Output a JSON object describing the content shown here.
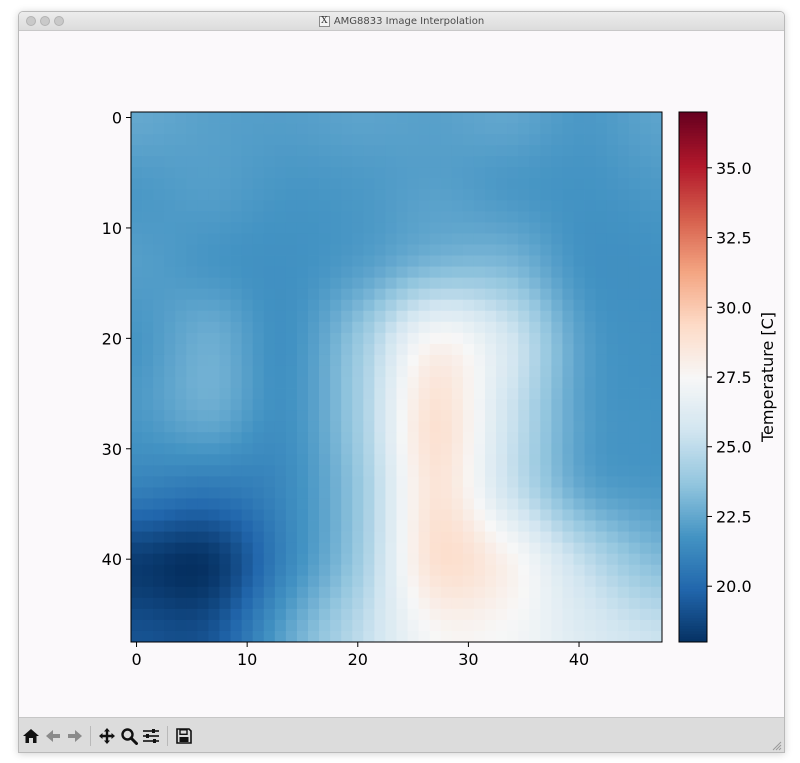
{
  "window": {
    "title": "AMG8833 Image Interpolation"
  },
  "toolbar": {
    "buttons": [
      {
        "name": "home-button",
        "icon": "home-icon"
      },
      {
        "name": "back-button",
        "icon": "arrow-left-icon"
      },
      {
        "name": "forward-button",
        "icon": "arrow-right-icon"
      },
      {
        "name": "pan-button",
        "icon": "move-icon"
      },
      {
        "name": "zoom-button",
        "icon": "magnifier-icon"
      },
      {
        "name": "configure-subplots-button",
        "icon": "sliders-icon"
      },
      {
        "name": "save-button",
        "icon": "floppy-disk-icon"
      }
    ]
  },
  "chart_data": {
    "type": "heatmap",
    "title": "",
    "xlabel": "",
    "ylabel": "",
    "grid_size": [
      48,
      48
    ],
    "xlim": [
      -0.5,
      47.5
    ],
    "ylim": [
      47.5,
      -0.5
    ],
    "x_ticks": [
      0,
      10,
      20,
      30,
      40
    ],
    "y_ticks": [
      0,
      10,
      20,
      30,
      40
    ],
    "x_tick_labels": [
      "0",
      "10",
      "20",
      "30",
      "40"
    ],
    "y_tick_labels": [
      "0",
      "10",
      "20",
      "30",
      "40"
    ],
    "colormap": "RdBu_r",
    "colorbar": {
      "label": "Temperature [C]",
      "range": [
        18,
        37
      ],
      "ticks": [
        20.0,
        22.5,
        25.0,
        27.5,
        30.0,
        32.5,
        35.0
      ],
      "tick_labels": [
        "20.0",
        "22.5",
        "25.0",
        "27.5",
        "30.0",
        "32.5",
        "35.0"
      ]
    },
    "sensor_grid_8x8": [
      [
        22.6,
        22.3,
        22.2,
        22.4,
        22.3,
        22.5,
        22.0,
        22.4
      ],
      [
        22.0,
        22.2,
        21.9,
        22.0,
        22.3,
        22.0,
        21.8,
        22.0
      ],
      [
        22.2,
        21.9,
        21.7,
        22.2,
        23.2,
        23.2,
        21.8,
        21.7
      ],
      [
        21.9,
        22.8,
        21.7,
        23.9,
        27.6,
        25.8,
        22.3,
        21.7
      ],
      [
        22.0,
        22.7,
        21.7,
        24.2,
        28.9,
        25.6,
        22.3,
        21.8
      ],
      [
        21.0,
        20.7,
        21.4,
        23.9,
        28.7,
        25.6,
        22.6,
        22.0
      ],
      [
        18.4,
        18.2,
        21.2,
        24.1,
        28.9,
        27.9,
        25.2,
        23.4
      ],
      [
        19.2,
        19.3,
        22.4,
        25.0,
        27.5,
        27.4,
        26.2,
        25.4
      ]
    ]
  }
}
